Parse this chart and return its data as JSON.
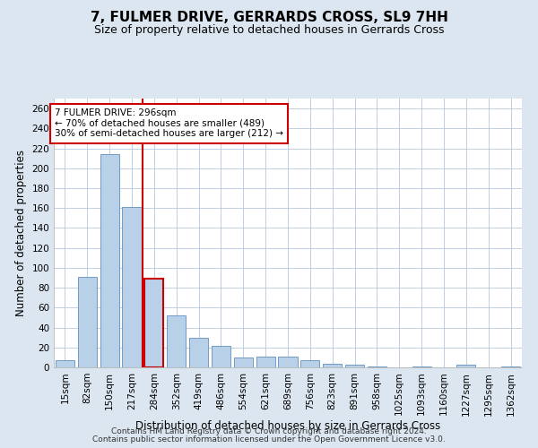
{
  "title": "7, FULMER DRIVE, GERRARDS CROSS, SL9 7HH",
  "subtitle": "Size of property relative to detached houses in Gerrards Cross",
  "xlabel": "Distribution of detached houses by size in Gerrards Cross",
  "ylabel": "Number of detached properties",
  "footer_line1": "Contains HM Land Registry data © Crown copyright and database right 2024.",
  "footer_line2": "Contains public sector information licensed under the Open Government Licence v3.0.",
  "categories": [
    "15sqm",
    "82sqm",
    "150sqm",
    "217sqm",
    "284sqm",
    "352sqm",
    "419sqm",
    "486sqm",
    "554sqm",
    "621sqm",
    "689sqm",
    "756sqm",
    "823sqm",
    "891sqm",
    "958sqm",
    "1025sqm",
    "1093sqm",
    "1160sqm",
    "1227sqm",
    "1295sqm",
    "1362sqm"
  ],
  "values": [
    7,
    91,
    214,
    161,
    89,
    52,
    30,
    22,
    10,
    11,
    11,
    7,
    4,
    3,
    1,
    0,
    1,
    0,
    3,
    0,
    1
  ],
  "bar_color": "#b8d0e8",
  "bar_edge_color": "#6090c0",
  "highlight_bar_index": 4,
  "highlight_bar_edge_color": "#cc0000",
  "vline_x": 3.5,
  "vline_color": "#cc0000",
  "annotation_text": "7 FULMER DRIVE: 296sqm\n← 70% of detached houses are smaller (489)\n30% of semi-detached houses are larger (212) →",
  "annotation_box_color": "white",
  "annotation_box_edge_color": "#cc0000",
  "ylim": [
    0,
    270
  ],
  "yticks": [
    0,
    20,
    40,
    60,
    80,
    100,
    120,
    140,
    160,
    180,
    200,
    220,
    240,
    260
  ],
  "bg_color": "#dce6f0",
  "plot_bg_color": "#ffffff",
  "title_fontsize": 11,
  "subtitle_fontsize": 9,
  "axis_label_fontsize": 8.5,
  "tick_fontsize": 7.5,
  "annotation_fontsize": 7.5,
  "footer_fontsize": 6.5
}
